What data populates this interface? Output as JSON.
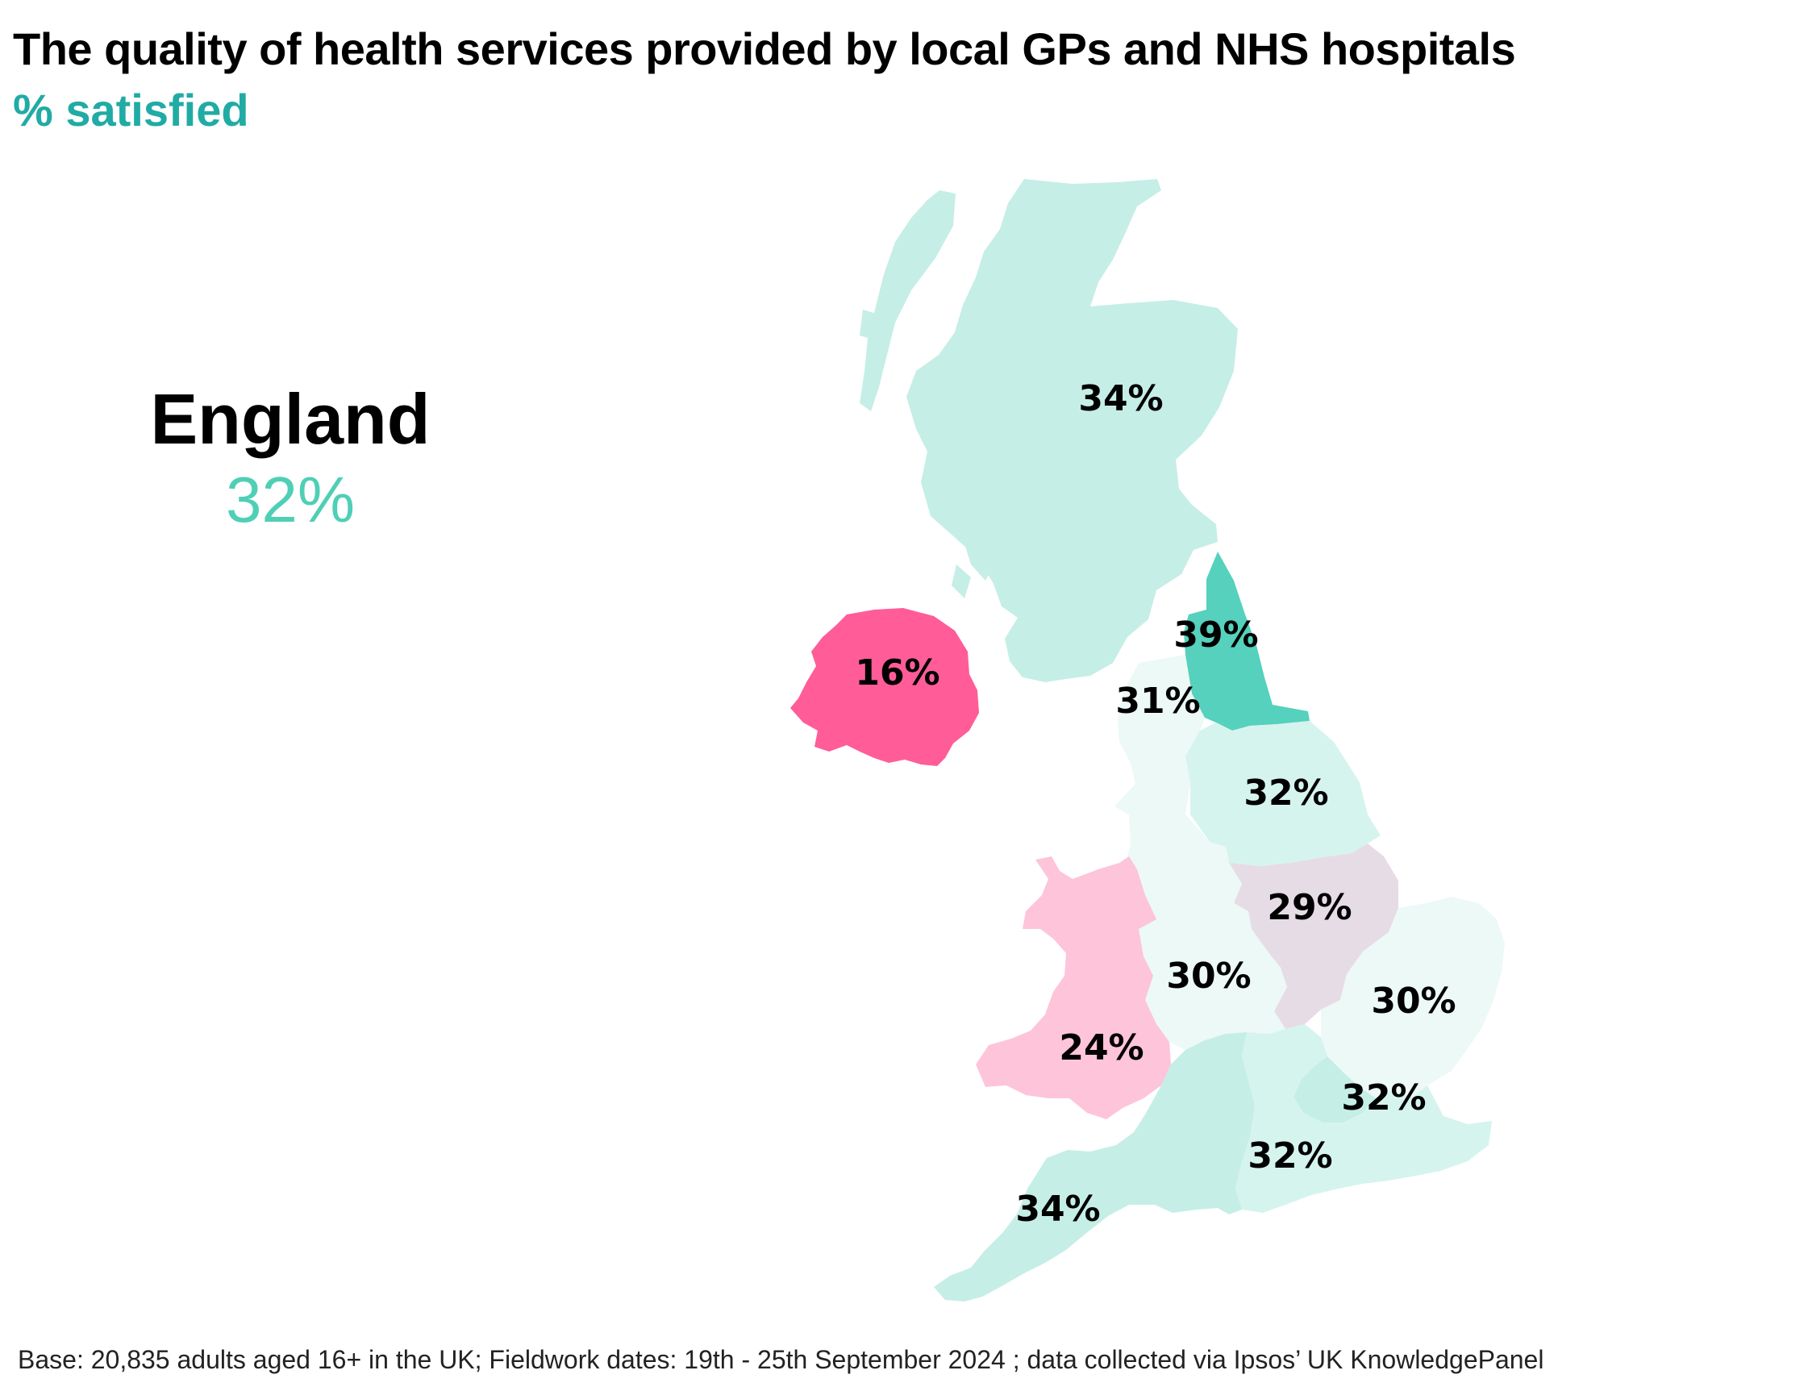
{
  "title": "The quality of health services provided by local GPs and NHS hospitals",
  "subtitle": "% satisfied",
  "callout": {
    "name": "England",
    "value": "32%"
  },
  "footnote": "Base: 20,835 adults aged 16+ in the UK; Fieldwork dates: 19th - 25th September 2024 ; data collected via Ipsos’ UK KnowledgePanel",
  "colors": {
    "subtitle": "#21aba5",
    "england_value": "#4fcfb6",
    "scotland": "#c5eee6",
    "northern_ireland": "#ff5c98",
    "wales": "#fdc4da",
    "north_east": "#55d1bd",
    "north_west": "#ecf9f6",
    "yorkshire": "#d6f4ee",
    "east_midlands": "#e6dce5",
    "west_midlands": "#ecf9f6",
    "east_of_england": "#ecf9f6",
    "london": "#c5eee6",
    "south_east": "#d6f4ee",
    "south_west": "#c5eee6"
  },
  "regions": [
    {
      "id": "scotland",
      "label": "34%",
      "value": 34
    },
    {
      "id": "northern-ireland",
      "label": "16%",
      "value": 16
    },
    {
      "id": "north-east",
      "label": "39%",
      "value": 39
    },
    {
      "id": "north-west",
      "label": "31%",
      "value": 31
    },
    {
      "id": "yorkshire",
      "label": "32%",
      "value": 32
    },
    {
      "id": "east-midlands",
      "label": "29%",
      "value": 29
    },
    {
      "id": "west-midlands",
      "label": "30%",
      "value": 30
    },
    {
      "id": "east-of-england",
      "label": "30%",
      "value": 30
    },
    {
      "id": "wales",
      "label": "24%",
      "value": 24
    },
    {
      "id": "london",
      "label": "32%",
      "value": 32
    },
    {
      "id": "south-east",
      "label": "32%",
      "value": 32
    },
    {
      "id": "south-west",
      "label": "34%",
      "value": 34
    }
  ]
}
